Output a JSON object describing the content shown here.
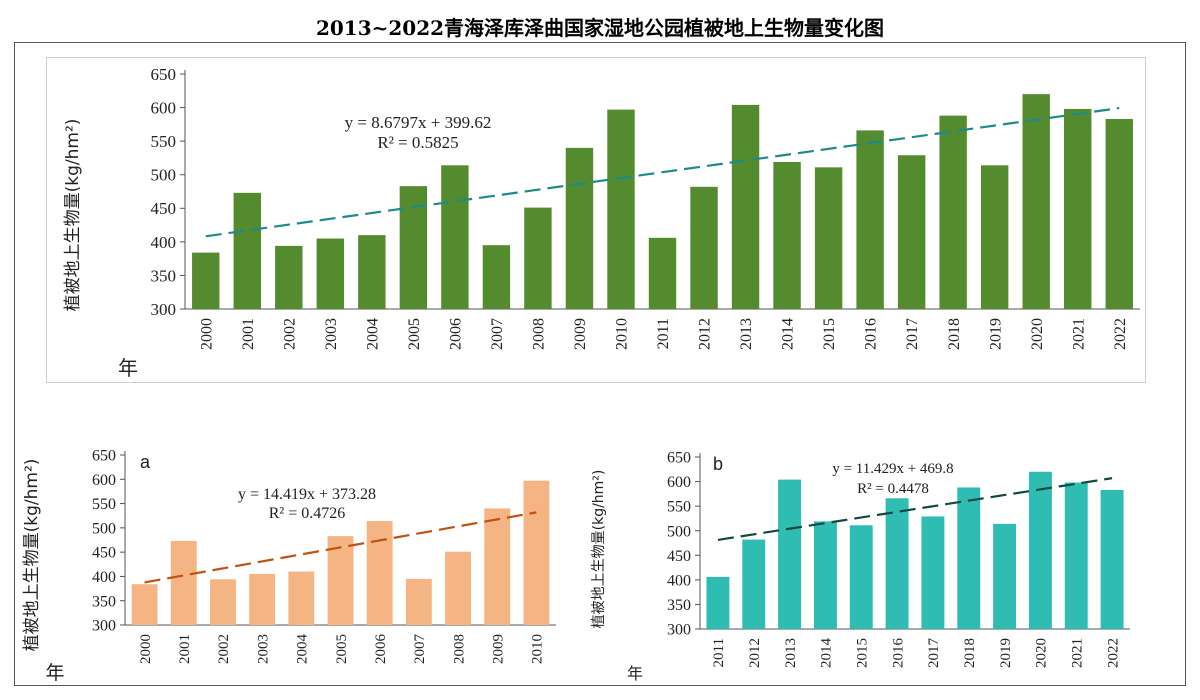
{
  "title": "2013~2022青海泽库泽曲国家湿地公园植被地上生物量变化图",
  "chart_data": [
    {
      "id": "top",
      "type": "bar",
      "title": "",
      "panel_letter": "",
      "ylabel": "植被地上生物量(kg/hm²)",
      "xlabel": "年",
      "ylim": [
        300,
        650
      ],
      "yticks": [
        300,
        350,
        400,
        450,
        500,
        550,
        600,
        650
      ],
      "categories": [
        "2000",
        "2001",
        "2002",
        "2003",
        "2004",
        "2005",
        "2006",
        "2007",
        "2008",
        "2009",
        "2010",
        "2011",
        "2012",
        "2013",
        "2014",
        "2015",
        "2016",
        "2017",
        "2018",
        "2019",
        "2020",
        "2021",
        "2022"
      ],
      "values": [
        384,
        473,
        394,
        405,
        410,
        483,
        514,
        395,
        451,
        540,
        597,
        406,
        482,
        604,
        519,
        511,
        566,
        529,
        588,
        514,
        620,
        598,
        583
      ],
      "bar_color": "#548b2e",
      "trendline": {
        "slope": 8.6797,
        "intercept": 399.62,
        "color": "#1e8a8a"
      },
      "equation": "y = 8.6797x + 399.62",
      "r2": "R² = 0.5825"
    },
    {
      "id": "a",
      "type": "bar",
      "title": "",
      "panel_letter": "a",
      "ylabel": "植被地上生物量(kg/hm²)",
      "xlabel": "年",
      "ylim": [
        300,
        650
      ],
      "yticks": [
        300,
        350,
        400,
        450,
        500,
        550,
        600,
        650
      ],
      "categories": [
        "2000",
        "2001",
        "2002",
        "2003",
        "2004",
        "2005",
        "2006",
        "2007",
        "2008",
        "2009",
        "2010"
      ],
      "values": [
        384,
        473,
        394,
        405,
        410,
        483,
        514,
        395,
        451,
        540,
        597
      ],
      "bar_color": "#f5b483",
      "trendline": {
        "slope": 14.419,
        "intercept": 373.28,
        "color": "#c0520e"
      },
      "equation": "y = 14.419x + 373.28",
      "r2": "R² = 0.4726"
    },
    {
      "id": "b",
      "type": "bar",
      "title": "",
      "panel_letter": "b",
      "ylabel": "植被地上生物量(kg/hm²)",
      "xlabel": "年",
      "ylim": [
        300,
        650
      ],
      "yticks": [
        300,
        350,
        400,
        450,
        500,
        550,
        600,
        650
      ],
      "categories": [
        "2011",
        "2012",
        "2013",
        "2014",
        "2015",
        "2016",
        "2017",
        "2018",
        "2019",
        "2020",
        "2021",
        "2022"
      ],
      "values": [
        406,
        482,
        604,
        519,
        511,
        566,
        529,
        588,
        514,
        620,
        598,
        583
      ],
      "bar_color": "#2fbdb3",
      "trendline": {
        "slope": 11.429,
        "intercept": 469.8,
        "color": "#0f4a40"
      },
      "equation": "y = 11.429x + 469.8",
      "r2": "R² = 0.4478"
    }
  ]
}
